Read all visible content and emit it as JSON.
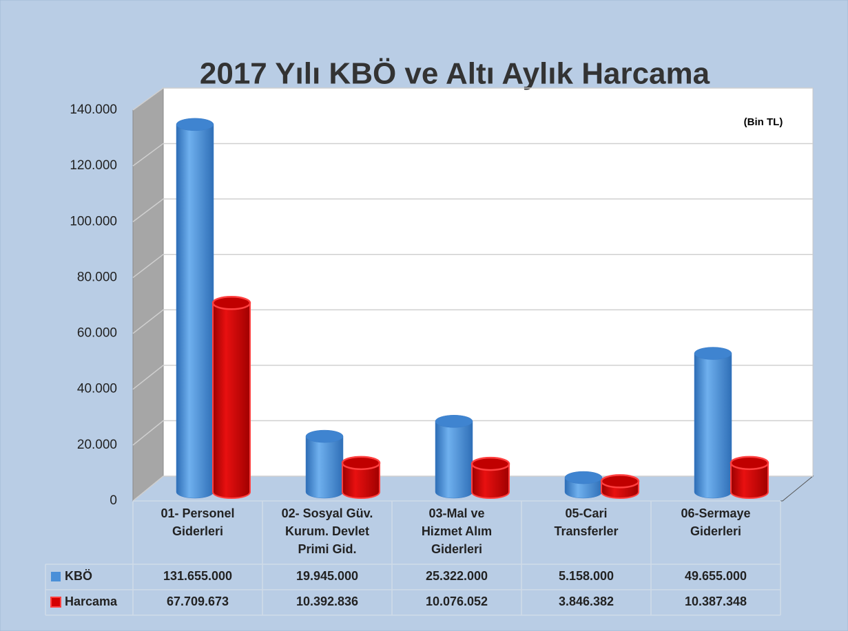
{
  "chart_data": {
    "type": "bar3d",
    "title": "2017 Yılı KBÖ ve Altı Aylık Harcama",
    "unit_note": "(Bin TL)",
    "categories": [
      "01- Personel\nGiderleri",
      "02- Sosyal Güv.\nKurum. Devlet\nPrimi Gid.",
      "03-Mal ve\nHizmet Alım\nGiderleri",
      "05-Cari\nTransferler",
      "06-Sermaye\nGiderleri"
    ],
    "series": [
      {
        "name": "KBÖ",
        "color": "#4a8fd8",
        "values": [
          131655,
          19945,
          25322,
          5158,
          49655
        ],
        "value_labels": [
          "131.655.000",
          "19.945.000",
          "25.322.000",
          "5.158.000",
          "49.655.000"
        ]
      },
      {
        "name": "Harcama",
        "color": "#d40000",
        "values": [
          67709.673,
          10392.836,
          10076.052,
          3846.382,
          10387.348
        ],
        "value_labels": [
          "67.709.673",
          "10.392.836",
          "10.076.052",
          "3.846.382",
          "10.387.348"
        ]
      }
    ],
    "ylim": [
      0,
      140000
    ],
    "yticks": [
      0,
      {
        "value": 20000,
        "label": "20.000"
      },
      {
        "value": 40000,
        "label": "40.000"
      },
      {
        "value": 60000,
        "label": "60.000"
      },
      {
        "value": 80000,
        "label": "80.000"
      },
      {
        "value": 100000,
        "label": "100.000"
      },
      {
        "value": 120000,
        "label": "120.000"
      },
      {
        "value": 140000,
        "label": "140.000"
      }
    ],
    "grid": true,
    "data_table": true
  }
}
